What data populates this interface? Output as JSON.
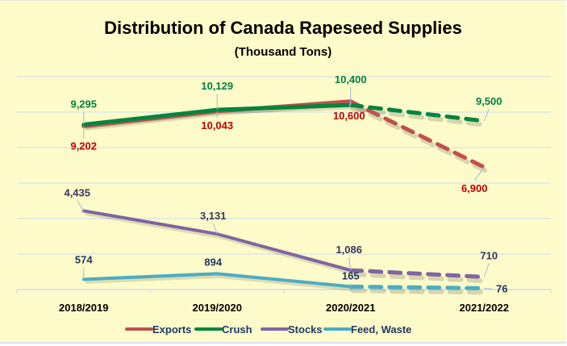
{
  "chart_data": {
    "type": "line",
    "title": "Distribution of Canada Rapeseed Supplies",
    "subtitle": "(Thousand Tons)",
    "xlabel": "",
    "ylabel": "",
    "ylim": [
      0,
      12000
    ],
    "y_gridline_step": 2000,
    "y_axis_labels_visible": false,
    "grid": true,
    "legend_position": "bottom",
    "categories": [
      "2018/2019",
      "2019/2020",
      "2020/2021",
      "2021/2022"
    ],
    "projected_from_index": 2,
    "series": [
      {
        "name": "Exports",
        "color": "#c0504d",
        "label_color": "#c00000",
        "values": [
          9202,
          10043,
          10600,
          6900
        ],
        "labels": [
          "9,202",
          "10,043",
          "10,600",
          "6,900"
        ]
      },
      {
        "name": "Crush",
        "color": "#00853e",
        "label_color": "#008040",
        "values": [
          9295,
          10129,
          10400,
          9500
        ],
        "labels": [
          "9,295",
          "10,129",
          "10,400",
          "9,500"
        ]
      },
      {
        "name": "Stocks",
        "color": "#8064a2",
        "label_color": "#3b3563",
        "values": [
          4435,
          3131,
          1086,
          710
        ],
        "labels": [
          "4,435",
          "3,131",
          "1,086",
          "710"
        ]
      },
      {
        "name": "Feed, Waste",
        "color": "#4bacc6",
        "label_color": "#1f3864",
        "values": [
          574,
          894,
          165,
          76
        ],
        "labels": [
          "574",
          "894",
          "165",
          "76"
        ]
      }
    ]
  }
}
